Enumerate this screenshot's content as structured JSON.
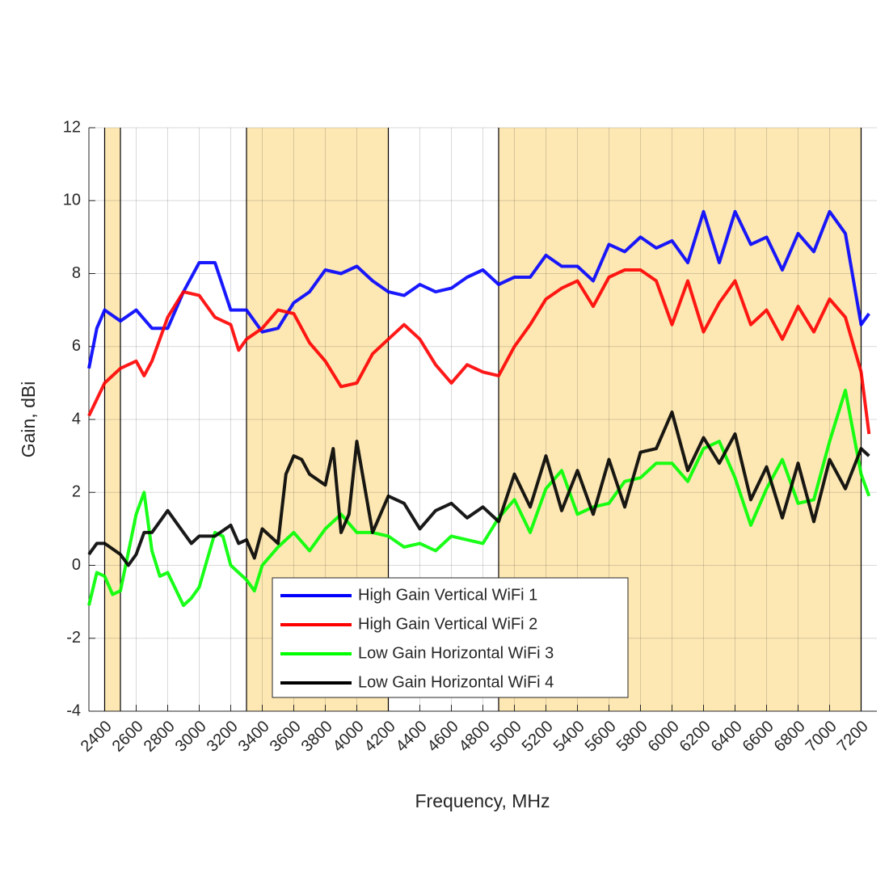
{
  "chart_data": {
    "type": "line",
    "xlabel": "Frequency, MHz",
    "ylabel": "Gain, dBi",
    "xlim": [
      2300,
      7300
    ],
    "ylim": [
      -4,
      12
    ],
    "xticks": [
      2400,
      2600,
      2800,
      3000,
      3200,
      3400,
      3600,
      3800,
      4000,
      4200,
      4400,
      4600,
      4800,
      5000,
      5200,
      5400,
      5600,
      5800,
      6000,
      6200,
      6400,
      6600,
      6800,
      7000,
      7200
    ],
    "yticks": [
      -4,
      -2,
      0,
      2,
      4,
      6,
      8,
      10,
      12
    ],
    "grid": true,
    "legend": "lower center",
    "bands": [
      [
        2400,
        2500
      ],
      [
        3300,
        4200
      ],
      [
        4900,
        7200
      ]
    ],
    "band_color": "#fde8b4",
    "series": [
      {
        "name": "High Gain Vertical WiFi 1",
        "color": "#0000ff",
        "x": [
          2300,
          2350,
          2400,
          2500,
          2600,
          2700,
          2800,
          2900,
          3000,
          3100,
          3200,
          3300,
          3400,
          3500,
          3600,
          3700,
          3800,
          3900,
          4000,
          4100,
          4200,
          4300,
          4400,
          4500,
          4600,
          4700,
          4800,
          4900,
          5000,
          5100,
          5200,
          5300,
          5400,
          5500,
          5600,
          5700,
          5800,
          5900,
          6000,
          6100,
          6200,
          6300,
          6400,
          6500,
          6600,
          6700,
          6800,
          6900,
          7000,
          7100,
          7200,
          7250
        ],
        "values": [
          5.4,
          6.5,
          7.0,
          6.7,
          7.0,
          6.5,
          6.5,
          7.5,
          8.3,
          8.3,
          7.0,
          7.0,
          6.4,
          6.5,
          7.2,
          7.5,
          8.1,
          8.0,
          8.2,
          7.8,
          7.5,
          7.4,
          7.7,
          7.5,
          7.6,
          7.9,
          8.1,
          7.7,
          7.9,
          7.9,
          8.5,
          8.2,
          8.2,
          7.8,
          8.8,
          8.6,
          9.0,
          8.7,
          8.9,
          8.3,
          9.7,
          8.3,
          9.7,
          8.8,
          9.0,
          8.1,
          9.1,
          8.6,
          9.7,
          9.1,
          6.6,
          6.9
        ]
      },
      {
        "name": "High Gain Vertical WiFi 2",
        "color": "#ff0000",
        "x": [
          2300,
          2400,
          2500,
          2600,
          2650,
          2700,
          2800,
          2900,
          3000,
          3100,
          3200,
          3250,
          3300,
          3400,
          3500,
          3600,
          3700,
          3800,
          3900,
          4000,
          4100,
          4200,
          4300,
          4400,
          4500,
          4600,
          4700,
          4800,
          4900,
          5000,
          5100,
          5200,
          5300,
          5400,
          5500,
          5600,
          5700,
          5800,
          5900,
          6000,
          6100,
          6200,
          6300,
          6400,
          6500,
          6600,
          6700,
          6800,
          6900,
          7000,
          7100,
          7200,
          7250
        ],
        "values": [
          4.1,
          5.0,
          5.4,
          5.6,
          5.2,
          5.6,
          6.8,
          7.5,
          7.4,
          6.8,
          6.6,
          5.9,
          6.2,
          6.5,
          7.0,
          6.9,
          6.1,
          5.6,
          4.9,
          5.0,
          5.8,
          6.2,
          6.6,
          6.2,
          5.5,
          5.0,
          5.5,
          5.3,
          5.2,
          6.0,
          6.6,
          7.3,
          7.6,
          7.8,
          7.1,
          7.9,
          8.1,
          8.1,
          7.8,
          6.6,
          7.8,
          6.4,
          7.2,
          7.8,
          6.6,
          7.0,
          6.2,
          7.1,
          6.4,
          7.3,
          6.8,
          5.3,
          3.6
        ]
      },
      {
        "name": "Low Gain Horizontal WiFi 3",
        "color": "#00ff00",
        "x": [
          2300,
          2350,
          2400,
          2450,
          2500,
          2600,
          2650,
          2700,
          2750,
          2800,
          2900,
          2950,
          3000,
          3100,
          3150,
          3200,
          3300,
          3350,
          3400,
          3500,
          3600,
          3700,
          3800,
          3900,
          4000,
          4100,
          4200,
          4300,
          4400,
          4500,
          4600,
          4700,
          4800,
          4900,
          5000,
          5100,
          5200,
          5300,
          5400,
          5500,
          5600,
          5700,
          5800,
          5900,
          6000,
          6100,
          6200,
          6300,
          6400,
          6500,
          6600,
          6700,
          6800,
          6900,
          7000,
          7100,
          7200,
          7250
        ],
        "values": [
          -1.1,
          -0.2,
          -0.3,
          -0.8,
          -0.7,
          1.4,
          2.0,
          0.4,
          -0.3,
          -0.2,
          -1.1,
          -0.9,
          -0.6,
          0.9,
          0.8,
          0.0,
          -0.4,
          -0.7,
          0.0,
          0.5,
          0.9,
          0.4,
          1.0,
          1.4,
          0.9,
          0.9,
          0.8,
          0.5,
          0.6,
          0.4,
          0.8,
          0.7,
          0.6,
          1.3,
          1.8,
          0.9,
          2.1,
          2.6,
          1.4,
          1.6,
          1.7,
          2.3,
          2.4,
          2.8,
          2.8,
          2.3,
          3.2,
          3.4,
          2.4,
          1.1,
          2.1,
          2.9,
          1.7,
          1.8,
          3.4,
          4.8,
          2.5,
          1.9
        ]
      },
      {
        "name": "Low Gain Horizontal WiFi 4",
        "color": "#000000",
        "x": [
          2300,
          2350,
          2400,
          2500,
          2550,
          2600,
          2650,
          2700,
          2800,
          2900,
          2950,
          3000,
          3100,
          3200,
          3250,
          3300,
          3350,
          3400,
          3500,
          3550,
          3600,
          3650,
          3700,
          3800,
          3850,
          3900,
          3950,
          4000,
          4100,
          4200,
          4300,
          4400,
          4500,
          4600,
          4700,
          4800,
          4900,
          5000,
          5100,
          5200,
          5300,
          5400,
          5500,
          5600,
          5700,
          5800,
          5900,
          6000,
          6100,
          6200,
          6300,
          6400,
          6500,
          6600,
          6700,
          6800,
          6900,
          7000,
          7100,
          7200,
          7250
        ],
        "values": [
          0.3,
          0.6,
          0.6,
          0.3,
          0.0,
          0.3,
          0.9,
          0.9,
          1.5,
          0.9,
          0.6,
          0.8,
          0.8,
          1.1,
          0.6,
          0.7,
          0.2,
          1.0,
          0.6,
          2.5,
          3.0,
          2.9,
          2.5,
          2.2,
          3.2,
          0.9,
          1.4,
          3.4,
          0.9,
          1.9,
          1.7,
          1.0,
          1.5,
          1.7,
          1.3,
          1.6,
          1.2,
          2.5,
          1.6,
          3.0,
          1.5,
          2.6,
          1.4,
          2.9,
          1.6,
          3.1,
          3.2,
          4.2,
          2.6,
          3.5,
          2.8,
          3.6,
          1.8,
          2.7,
          1.3,
          2.8,
          1.2,
          2.9,
          2.1,
          3.2,
          3.0
        ]
      }
    ]
  }
}
